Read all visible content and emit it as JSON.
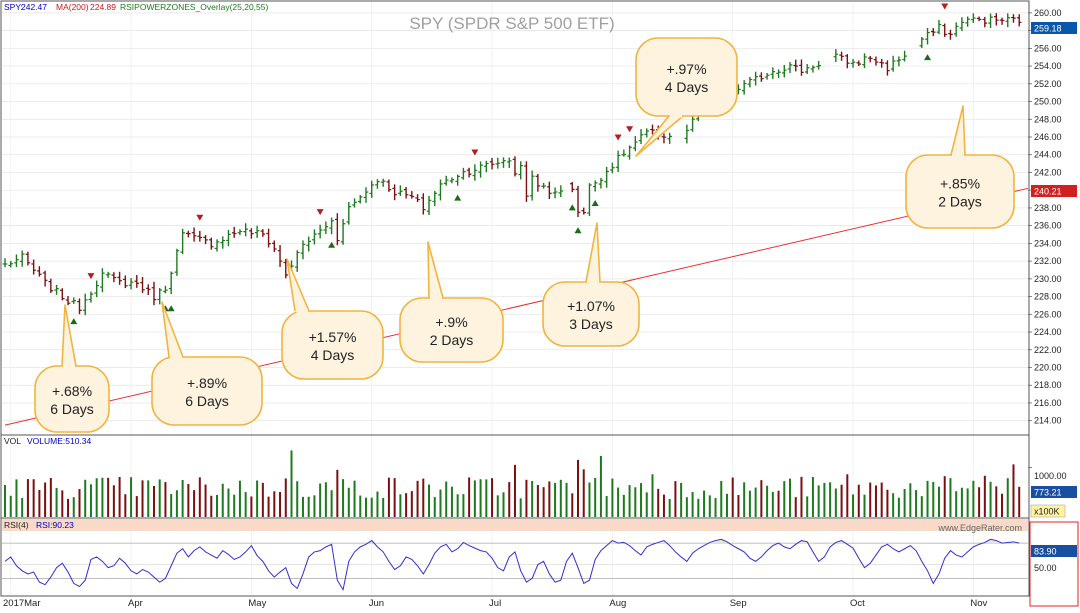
{
  "header": {
    "spy_label": "SPY:",
    "spy_value": "242.47",
    "ma_label": "MA(200)",
    "ma_value": "224.89",
    "overlay_label": "RSIPOWERZONES_Overlay(25,20,55)"
  },
  "colors": {
    "up": "#1e7a1e",
    "down": "#7a1010",
    "ma_line": "#e83030",
    "rsi_line": "#3030d0",
    "callout_fill": "#fdf3de",
    "callout_stroke": "#f2b441",
    "rsi_band": "#f9d9c8",
    "marker_up": "#1a6a1a",
    "marker_down": "#b02020"
  },
  "chart_data": {
    "type": "ohlc",
    "title": "SPY (SPDR S&P 500 ETF)",
    "price_ylim": [
      212.5,
      261
    ],
    "price_ticks": [
      "214.00",
      "216.00",
      "218.00",
      "220.00",
      "222.00",
      "224.00",
      "226.00",
      "228.00",
      "230.00",
      "232.00",
      "234.00",
      "236.00",
      "238.00",
      "240.00",
      "242.00",
      "244.00",
      "246.00",
      "248.00",
      "250.00",
      "252.00",
      "254.00",
      "256.00",
      "258.00",
      "260.00"
    ],
    "last_price": "259.18",
    "ma200_last": "240.21",
    "ma200_start": 213.5,
    "x_labels": [
      "2017Mar",
      "Apr",
      "May",
      "Jun",
      "Jul",
      "Aug",
      "Sep",
      "Oct",
      "Nov"
    ],
    "x_label_days": [
      1,
      22,
      43,
      64,
      85,
      106,
      127,
      148,
      169
    ],
    "n_days": 178,
    "anchors": [
      [
        0,
        231.6
      ],
      [
        3,
        232.4
      ],
      [
        7,
        229.5
      ],
      [
        11,
        227.5
      ],
      [
        13,
        226.8
      ],
      [
        17,
        230.5
      ],
      [
        20,
        229.6
      ],
      [
        23,
        229.5
      ],
      [
        26,
        228.0
      ],
      [
        28,
        229.0
      ],
      [
        31,
        235.0
      ],
      [
        36,
        234.0
      ],
      [
        41,
        235.5
      ],
      [
        45,
        235.0
      ],
      [
        47,
        233.4
      ],
      [
        49,
        230.5
      ],
      [
        52,
        233.8
      ],
      [
        57,
        236.5
      ],
      [
        61,
        238.6
      ],
      [
        65,
        241.3
      ],
      [
        68,
        239.8
      ],
      [
        71,
        239.2
      ],
      [
        73,
        238.0
      ],
      [
        76,
        240.6
      ],
      [
        79,
        241.8
      ],
      [
        84,
        242.8
      ],
      [
        88,
        243.5
      ],
      [
        92,
        241.5
      ],
      [
        95,
        239.5
      ],
      [
        98,
        240.5
      ],
      [
        101,
        239.8
      ],
      [
        104,
        241.5
      ],
      [
        108,
        244.2
      ],
      [
        112,
        246.5
      ],
      [
        115,
        246.2
      ],
      [
        118,
        245.8
      ],
      [
        122,
        249.5
      ],
      [
        125,
        251.3
      ],
      [
        128,
        251.5
      ],
      [
        131,
        252.5
      ],
      [
        134,
        253.5
      ],
      [
        137,
        254.0
      ],
      [
        139,
        253.5
      ],
      [
        142,
        254.3
      ],
      [
        145,
        255.0
      ],
      [
        148,
        254.3
      ],
      [
        151,
        255.0
      ],
      [
        154,
        253.8
      ],
      [
        157,
        255.3
      ],
      [
        160,
        257.0
      ],
      [
        163,
        258.3
      ],
      [
        165,
        257.5
      ],
      [
        167,
        259.2
      ]
    ],
    "shocks": [
      [
        58,
        -2.5
      ],
      [
        59,
        -1.0
      ],
      [
        89,
        -1.0
      ],
      [
        91,
        -2.5
      ],
      [
        100,
        -2.3
      ],
      [
        101,
        -2.3
      ]
    ],
    "gaps": [
      98,
      117,
      118,
      143,
      144,
      158,
      159
    ],
    "buy_markers": [
      12,
      28,
      29,
      57,
      79,
      99,
      100,
      103,
      161
    ],
    "sell_markers": [
      15,
      34,
      55,
      82,
      107,
      109,
      164
    ],
    "callouts": [
      {
        "label": "+.68%",
        "days": "6 Days"
      },
      {
        "label": "+.89%",
        "days": "6 Days"
      },
      {
        "label": "+1.57%",
        "days": "4 Days"
      },
      {
        "label": "+.9%",
        "days": "2 Days"
      },
      {
        "label": "+1.07%",
        "days": "3 Days"
      },
      {
        "label": "+.97%",
        "days": "4 Days"
      },
      {
        "label": "+.85%",
        "days": "2 Days"
      }
    ],
    "volume": {
      "label": "VOL",
      "name": "VOLUME:510.34",
      "scale_label": "1000.00",
      "last": "773.21",
      "unit": "x100K",
      "ylim": [
        0,
        1450
      ],
      "base": 660,
      "spikes": [
        [
          50,
          1340
        ],
        [
          51,
          720
        ],
        [
          58,
          950
        ],
        [
          89,
          1050
        ],
        [
          100,
          1150
        ],
        [
          101,
          960
        ],
        [
          104,
          1230
        ],
        [
          113,
          860
        ],
        [
          147,
          860
        ],
        [
          166,
          520
        ],
        [
          169,
          730
        ],
        [
          171,
          830
        ],
        [
          176,
          1060
        ]
      ]
    },
    "rsi": {
      "label": "RSI(4)",
      "name": "RSI:90.23",
      "last": "83.90",
      "ref_label": "50.00",
      "upper": 83.9,
      "lower": 28,
      "ylim": [
        0,
        100
      ],
      "watermark": "www.EdgeRater.com",
      "values": [
        55,
        62,
        48,
        40,
        35,
        38,
        22,
        18,
        30,
        45,
        52,
        38,
        20,
        15,
        25,
        58,
        62,
        55,
        45,
        48,
        60,
        52,
        40,
        35,
        42,
        38,
        30,
        22,
        28,
        48,
        68,
        75,
        62,
        72,
        78,
        70,
        65,
        60,
        72,
        66,
        58,
        62,
        70,
        80,
        64,
        55,
        40,
        30,
        38,
        45,
        20,
        12,
        35,
        62,
        70,
        72,
        78,
        82,
        25,
        10,
        55,
        70,
        78,
        82,
        88,
        78,
        70,
        55,
        42,
        48,
        62,
        58,
        48,
        35,
        50,
        68,
        78,
        82,
        70,
        75,
        85,
        80,
        76,
        72,
        70,
        60,
        45,
        40,
        62,
        70,
        40,
        22,
        28,
        50,
        55,
        35,
        22,
        25,
        55,
        68,
        45,
        20,
        25,
        58,
        72,
        80,
        88,
        84,
        85,
        80,
        72,
        65,
        78,
        82,
        85,
        88,
        80,
        70,
        62,
        55,
        68,
        75,
        80,
        85,
        88,
        90,
        86,
        80,
        75,
        70,
        60,
        55,
        62,
        72,
        80,
        84,
        78,
        75,
        82,
        88,
        86,
        70,
        55,
        62,
        78,
        85,
        88,
        82,
        76,
        60,
        45,
        52,
        65,
        78,
        82,
        75,
        70,
        75,
        80,
        72,
        55,
        40,
        20,
        35,
        60,
        72,
        65,
        62,
        70,
        78,
        82,
        85,
        90,
        88,
        83.9,
        85,
        86,
        84
      ]
    }
  }
}
